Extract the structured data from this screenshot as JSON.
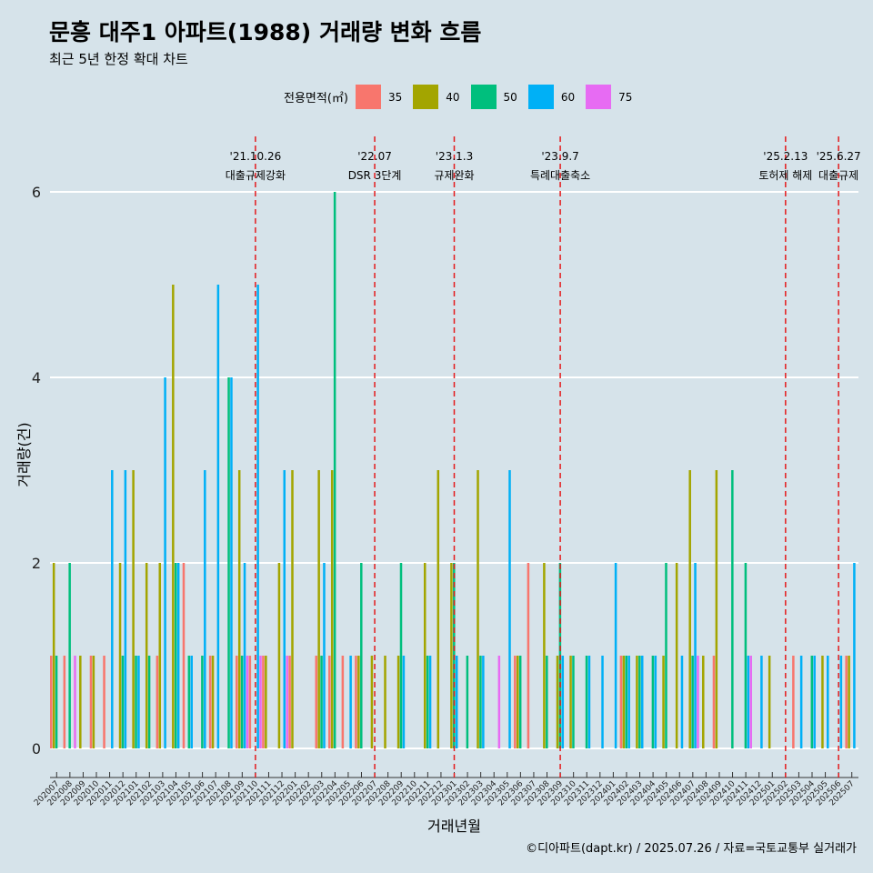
{
  "title": "문흥 대주1 아파트(1988) 거래량 변화 흐름",
  "subtitle": "최근 5년 한정 확대 차트",
  "legend_title": "전용면적(㎡)",
  "caption": "©디아파트(dapt.kr) / 2025.07.26 / 자료=국토교통부 실거래가",
  "colors": {
    "35": "#f8766d",
    "40": "#a3a500",
    "50": "#00bf7d",
    "60": "#00b0f6",
    "75": "#e76bf3"
  },
  "chart_data": {
    "type": "bar",
    "xlabel": "거래년월",
    "ylabel": "거래량(건)",
    "ylim": [
      0,
      6.3
    ],
    "yticks": [
      0,
      2,
      4,
      6
    ],
    "months": [
      "202007",
      "202008",
      "202009",
      "202010",
      "202011",
      "202012",
      "202101",
      "202102",
      "202103",
      "202104",
      "202105",
      "202106",
      "202107",
      "202108",
      "202109",
      "202110",
      "202111",
      "202112",
      "202201",
      "202202",
      "202203",
      "202204",
      "202205",
      "202206",
      "202207",
      "202208",
      "202209",
      "202210",
      "202211",
      "202212",
      "202301",
      "202302",
      "202303",
      "202304",
      "202305",
      "202306",
      "202307",
      "202308",
      "202309",
      "202310",
      "202311",
      "202312",
      "202401",
      "202402",
      "202403",
      "202404",
      "202405",
      "202406",
      "202407",
      "202408",
      "202409",
      "202410",
      "202411",
      "202412",
      "202501",
      "202502",
      "202503",
      "202504",
      "202505",
      "202506",
      "202507"
    ],
    "series": [
      {
        "name": "35",
        "values": [
          1,
          1,
          0,
          1,
          1,
          0,
          0,
          0,
          1,
          0,
          2,
          0,
          1,
          0,
          1,
          1,
          1,
          0,
          1,
          0,
          1,
          1,
          1,
          1,
          0,
          0,
          0,
          0,
          0,
          0,
          0,
          0,
          0,
          0,
          0,
          1,
          2,
          0,
          0,
          0,
          0,
          0,
          0,
          1,
          0,
          0,
          0,
          0,
          0,
          0,
          1,
          0,
          0,
          0,
          0,
          0,
          1,
          0,
          0,
          0,
          1
        ]
      },
      {
        "name": "40",
        "values": [
          2,
          0,
          1,
          1,
          0,
          2,
          3,
          2,
          2,
          5,
          0,
          0,
          1,
          0,
          3,
          0,
          1,
          2,
          3,
          0,
          3,
          3,
          0,
          1,
          1,
          1,
          1,
          0,
          2,
          3,
          2,
          0,
          3,
          0,
          0,
          1,
          0,
          2,
          1,
          1,
          0,
          0,
          0,
          1,
          1,
          0,
          1,
          2,
          3,
          1,
          3,
          0,
          0,
          0,
          1,
          0,
          0,
          0,
          1,
          0,
          1
        ]
      },
      {
        "name": "50",
        "values": [
          1,
          2,
          0,
          0,
          0,
          1,
          1,
          1,
          0,
          2,
          1,
          1,
          0,
          4,
          1,
          0,
          0,
          0,
          0,
          0,
          1,
          6,
          0,
          2,
          0,
          0,
          2,
          0,
          1,
          0,
          2,
          1,
          1,
          0,
          0,
          1,
          0,
          1,
          2,
          1,
          1,
          0,
          0,
          1,
          1,
          1,
          2,
          0,
          1,
          0,
          0,
          3,
          2,
          0,
          0,
          0,
          0,
          1,
          0,
          0,
          0
        ]
      },
      {
        "name": "60",
        "values": [
          0,
          0,
          0,
          0,
          3,
          3,
          1,
          0,
          4,
          2,
          1,
          3,
          5,
          4,
          2,
          5,
          0,
          3,
          0,
          0,
          2,
          0,
          1,
          0,
          0,
          0,
          1,
          0,
          1,
          0,
          1,
          0,
          1,
          0,
          3,
          0,
          0,
          0,
          1,
          0,
          1,
          1,
          2,
          1,
          1,
          1,
          0,
          1,
          2,
          0,
          0,
          0,
          1,
          1,
          0,
          0,
          1,
          1,
          1,
          1,
          2
        ]
      },
      {
        "name": "75",
        "values": [
          0,
          1,
          0,
          0,
          0,
          0,
          0,
          0,
          0,
          0,
          0,
          0,
          0,
          0,
          1,
          1,
          0,
          1,
          0,
          0,
          0,
          0,
          0,
          0,
          0,
          0,
          0,
          0,
          0,
          0,
          0,
          0,
          0,
          1,
          0,
          0,
          0,
          0,
          0,
          0,
          0,
          0,
          0,
          0,
          0,
          0,
          0,
          0,
          1,
          0,
          0,
          0,
          1,
          0,
          0,
          0,
          0,
          0,
          0,
          0,
          0
        ]
      }
    ],
    "events": [
      {
        "label_date": "'21.10.26",
        "label_text": "대출규제강화",
        "month": "202110"
      },
      {
        "label_date": "'22.07",
        "label_text": "DSR 3단계",
        "month": "202207"
      },
      {
        "label_date": "'23.1.3",
        "label_text": "규제완화",
        "month": "202301"
      },
      {
        "label_date": "'23.9.7",
        "label_text": "특례대출축소",
        "month": "202309"
      },
      {
        "label_date": "'25.2.13",
        "label_text": "토허제 해제",
        "month": "202502"
      },
      {
        "label_date": "'25.6.27",
        "label_text": "대출규제",
        "month": "202506"
      }
    ]
  }
}
